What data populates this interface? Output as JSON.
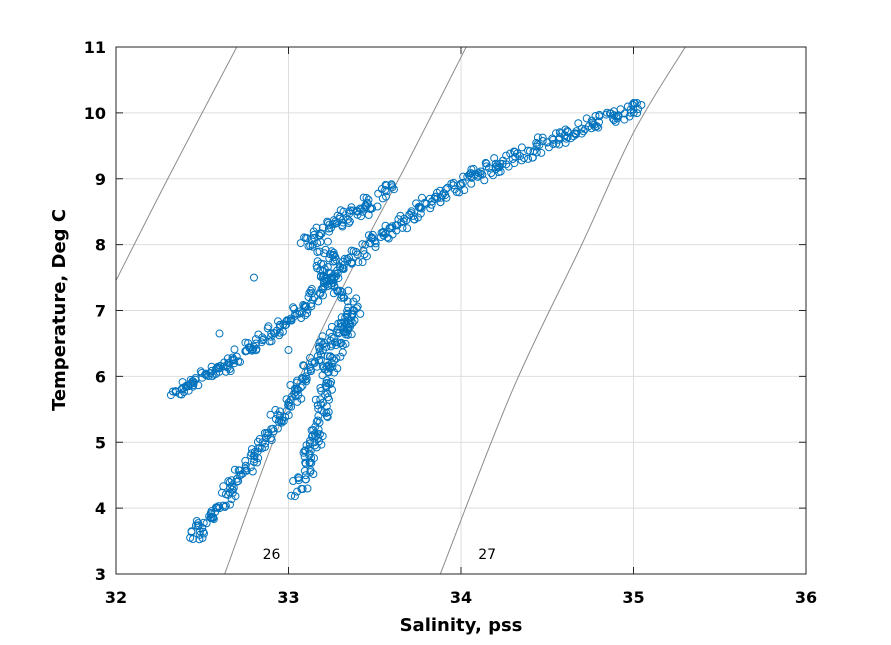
{
  "chart_data": {
    "type": "scatter",
    "title": "",
    "xlabel": "Salinity, pss",
    "ylabel": "Temperature, Deg C",
    "xlim": [
      32,
      36
    ],
    "ylim": [
      3,
      11
    ],
    "xticks": [
      "32",
      "33",
      "34",
      "35",
      "36"
    ],
    "yticks": [
      "3",
      "4",
      "5",
      "6",
      "7",
      "8",
      "9",
      "10",
      "11"
    ],
    "grid": true,
    "marker": "open-circle",
    "marker_color": "#0072BD",
    "contour_color": "#8c8c8c",
    "density_contours": [
      {
        "label": "",
        "points": [
          [
            31.97,
            7.3
          ],
          [
            32.3,
            9.0
          ],
          [
            32.7,
            11.0
          ]
        ]
      },
      {
        "label": "26",
        "label_at": [
          32.85,
          3.3
        ],
        "points": [
          [
            32.63,
            3.0
          ],
          [
            33.0,
            5.6
          ],
          [
            33.4,
            7.8
          ],
          [
            33.7,
            9.3
          ],
          [
            34.03,
            11.0
          ]
        ]
      },
      {
        "label": "27",
        "label_at": [
          34.1,
          3.3
        ],
        "points": [
          [
            33.88,
            3.0
          ],
          [
            34.3,
            5.8
          ],
          [
            34.7,
            8.0
          ],
          [
            35.0,
            9.7
          ],
          [
            35.3,
            11.0
          ]
        ]
      }
    ],
    "series": [
      {
        "points": [
          [
            32.33,
            5.77
          ],
          [
            32.38,
            5.8
          ],
          [
            32.42,
            5.85
          ],
          [
            32.45,
            5.9
          ],
          [
            32.5,
            5.98
          ],
          [
            32.55,
            6.05
          ],
          [
            32.6,
            6.12
          ],
          [
            32.65,
            6.2
          ],
          [
            32.7,
            6.3
          ],
          [
            32.75,
            6.38
          ],
          [
            32.8,
            6.45
          ],
          [
            32.85,
            6.55
          ],
          [
            32.9,
            6.65
          ],
          [
            32.95,
            6.75
          ],
          [
            33.0,
            6.85
          ],
          [
            33.05,
            6.95
          ],
          [
            33.1,
            7.05
          ],
          [
            33.15,
            7.2
          ],
          [
            33.2,
            7.35
          ],
          [
            33.25,
            7.5
          ],
          [
            33.3,
            7.65
          ],
          [
            33.4,
            7.85
          ],
          [
            33.5,
            8.05
          ],
          [
            33.6,
            8.25
          ],
          [
            33.7,
            8.45
          ],
          [
            33.8,
            8.62
          ],
          [
            33.9,
            8.78
          ],
          [
            34.0,
            8.92
          ],
          [
            34.1,
            9.05
          ],
          [
            34.2,
            9.18
          ],
          [
            34.3,
            9.3
          ],
          [
            34.4,
            9.42
          ],
          [
            34.5,
            9.55
          ],
          [
            34.6,
            9.66
          ],
          [
            34.7,
            9.76
          ],
          [
            34.8,
            9.86
          ],
          [
            34.9,
            9.95
          ],
          [
            35.0,
            10.05
          ],
          [
            35.02,
            10.15
          ],
          [
            32.43,
            3.55
          ],
          [
            32.5,
            3.7
          ],
          [
            32.55,
            3.85
          ],
          [
            32.6,
            4.0
          ],
          [
            32.65,
            4.2
          ],
          [
            32.7,
            4.4
          ],
          [
            32.75,
            4.6
          ],
          [
            32.8,
            4.8
          ],
          [
            32.85,
            5.0
          ],
          [
            32.9,
            5.2
          ],
          [
            32.95,
            5.4
          ],
          [
            33.0,
            5.6
          ],
          [
            33.05,
            5.8
          ],
          [
            33.1,
            6.0
          ],
          [
            33.15,
            6.2
          ],
          [
            33.2,
            6.4
          ],
          [
            33.25,
            6.6
          ],
          [
            33.3,
            6.75
          ],
          [
            33.35,
            6.85
          ],
          [
            33.05,
            4.25
          ],
          [
            33.1,
            4.5
          ],
          [
            33.12,
            4.8
          ],
          [
            33.15,
            5.0
          ],
          [
            33.18,
            5.3
          ],
          [
            33.2,
            5.6
          ],
          [
            33.22,
            5.9
          ],
          [
            33.25,
            6.2
          ],
          [
            33.3,
            6.5
          ],
          [
            33.35,
            6.8
          ],
          [
            33.38,
            7.0
          ],
          [
            33.3,
            7.3
          ],
          [
            33.2,
            7.6
          ],
          [
            33.25,
            7.9
          ],
          [
            33.1,
            8.1
          ],
          [
            33.4,
            8.5
          ],
          [
            33.6,
            8.9
          ],
          [
            33.0,
            6.4
          ],
          [
            32.6,
            6.65
          ],
          [
            32.8,
            7.5
          ]
        ]
      }
    ]
  }
}
